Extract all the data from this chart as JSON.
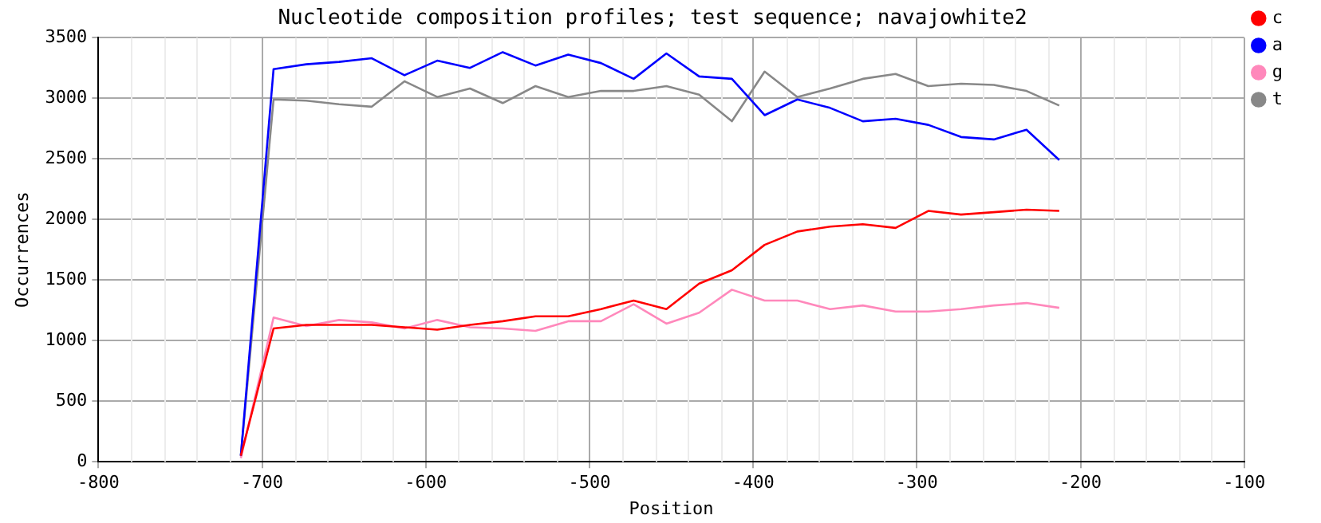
{
  "chart_data": {
    "type": "line",
    "title": "Nucleotide composition profiles; test sequence; navajowhite2",
    "xlabel": "Position",
    "ylabel": "Occurrences",
    "x": [
      -713,
      -693,
      -673,
      -653,
      -633,
      -613,
      -593,
      -573,
      -553,
      -533,
      -513,
      -493,
      -473,
      -453,
      -433,
      -413,
      -393,
      -373,
      -353,
      -333,
      -313,
      -293,
      -273,
      -253,
      -233,
      -213
    ],
    "series": [
      {
        "name": "c",
        "color": "#ff0000",
        "values": [
          50,
          1100,
          1130,
          1130,
          1130,
          1110,
          1090,
          1130,
          1160,
          1200,
          1200,
          1260,
          1330,
          1260,
          1470,
          1580,
          1790,
          1900,
          1940,
          1960,
          1930,
          2070,
          2040,
          2060,
          2080,
          2070
        ]
      },
      {
        "name": "a",
        "color": "#0000ff",
        "values": [
          50,
          3240,
          3280,
          3300,
          3330,
          3190,
          3310,
          3250,
          3380,
          3270,
          3360,
          3290,
          3160,
          3370,
          3180,
          3160,
          2860,
          2990,
          2920,
          2810,
          2830,
          2780,
          2680,
          2660,
          2740,
          2490
        ]
      },
      {
        "name": "g",
        "color": "#ff88bb",
        "values": [
          30,
          1190,
          1120,
          1170,
          1150,
          1100,
          1170,
          1110,
          1100,
          1080,
          1160,
          1160,
          1300,
          1140,
          1230,
          1420,
          1330,
          1330,
          1260,
          1290,
          1240,
          1240,
          1260,
          1290,
          1310,
          1270
        ]
      },
      {
        "name": "t",
        "color": "#888888",
        "values": [
          50,
          2990,
          2980,
          2950,
          2930,
          3140,
          3010,
          3080,
          2960,
          3100,
          3010,
          3060,
          3060,
          3100,
          3030,
          2810,
          3220,
          3010,
          3080,
          3160,
          3200,
          3100,
          3120,
          3110,
          3060,
          2940
        ]
      }
    ],
    "xlim": [
      -800,
      -100
    ],
    "xticks": [
      -800,
      -700,
      -600,
      -500,
      -400,
      -300,
      -200,
      -100
    ],
    "ylim": [
      0,
      3500
    ],
    "yticks": [
      0,
      500,
      1000,
      1500,
      2000,
      2500,
      3000,
      3500
    ],
    "grid": true,
    "legend": "top right",
    "marker": "none",
    "line_style": "solid"
  }
}
